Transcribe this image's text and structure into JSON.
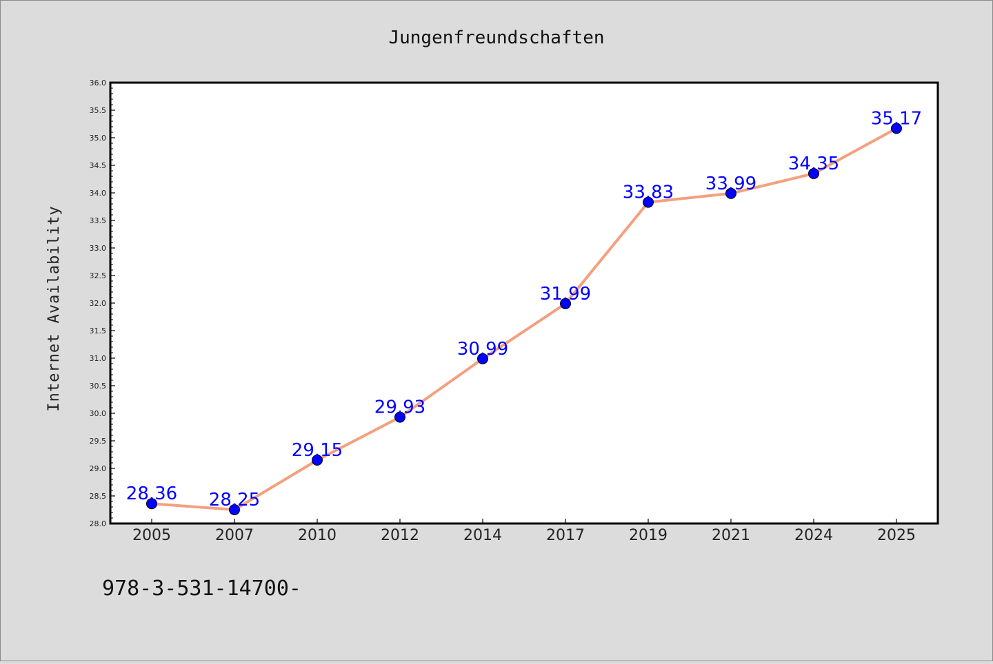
{
  "chart_data": {
    "type": "line",
    "title": "Jungenfreundschaften",
    "xlabel": "",
    "ylabel": "Internet Availability",
    "categories": [
      "2005",
      "2007",
      "2010",
      "2012",
      "2014",
      "2017",
      "2019",
      "2021",
      "2024",
      "2025"
    ],
    "series": [
      {
        "values": [
          28.36,
          28.25,
          29.15,
          29.93,
          30.99,
          31.99,
          33.83,
          33.99,
          34.35,
          35.17
        ],
        "labels": [
          "28.36",
          "28.25",
          "29.15",
          "29.93",
          "30.99",
          "31.99",
          "33.83",
          "33.99",
          "34.35",
          "35.17"
        ]
      }
    ],
    "ylim": [
      28.0,
      36.0
    ],
    "yticks": [
      "28.0",
      "28.5",
      "29.0",
      "29.5",
      "30.0",
      "30.5",
      "31.0",
      "31.5",
      "32.0",
      "32.5",
      "33.0",
      "33.5",
      "34.0",
      "34.5",
      "35.0",
      "35.5",
      "36.0"
    ],
    "grid": false,
    "line_color": "#f4a07e",
    "marker_color": "#0000ff",
    "label_color": "#0000ff",
    "plot_background": "#ffffff",
    "page_background": "#dcdcdc"
  },
  "footer_text": "978-3-531-14700-"
}
